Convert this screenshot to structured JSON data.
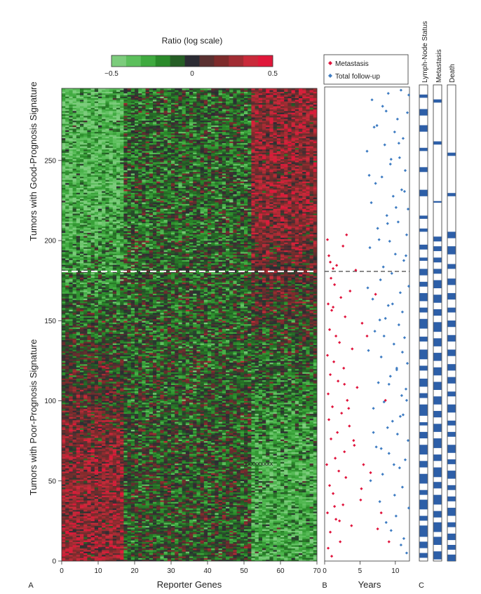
{
  "figure": {
    "panel_labels": [
      "A",
      "B",
      "C"
    ]
  },
  "colorbar": {
    "title": "Ratio (log scale)",
    "ticks": [
      "−0.5",
      "0",
      "0.5"
    ],
    "range": [
      -0.5,
      0.5
    ],
    "colors": [
      "#7ccc7c",
      "#5cbf5c",
      "#3faa3f",
      "#2a8a2a",
      "#255e25",
      "#2b2b33",
      "#5a3030",
      "#7d2b2b",
      "#a12c33",
      "#c92a3a",
      "#e0173a"
    ]
  },
  "panels": {
    "A": {
      "xlabel": "Reporter Genes",
      "x_ticks": [
        "0",
        "10",
        "20",
        "30",
        "40",
        "50",
        "60",
        "70"
      ],
      "y_ticks": [
        "0",
        "50",
        "100",
        "150",
        "200",
        "250"
      ],
      "ylabel_top": "Tumors with Good-Prognosis Signature",
      "ylabel_bottom": "Tumors with Poor-Prognosis Signature"
    },
    "B": {
      "xlabel": "Years",
      "x_ticks": [
        "0",
        "5",
        "10"
      ],
      "legend": [
        "Metastasis",
        "Total follow-up"
      ]
    },
    "C": {
      "column_labels": [
        "Lymph-Node Status",
        "Metastasis",
        "Death"
      ]
    }
  },
  "chart_data": [
    {
      "type": "heatmap",
      "x_range": [
        0,
        70
      ],
      "y_range": [
        0,
        295
      ],
      "xlabel": "Reporter Genes",
      "ylabel": "Tumors with Good-Prognosis Signature / Tumors with Poor-Prognosis Signature",
      "n_genes": 70,
      "n_tumors": 295,
      "value_range": [
        -0.5,
        0.5
      ],
      "threshold_line_y": 180,
      "mean_ratio_by_gene_block": {
        "genes": [
          "0-17",
          "17-52",
          "52-70"
        ],
        "tumors_0_180": [
          0.25,
          -0.05,
          -0.3
        ],
        "tumors_180_295": [
          -0.35,
          -0.1,
          0.25
        ]
      },
      "note_marker": "xxxxxxxxx",
      "note_marker_position": {
        "x": 49.5,
        "y": 61
      }
    },
    {
      "type": "scatter",
      "xlabel": "Years",
      "x_range": [
        0,
        12
      ],
      "y_range": [
        0,
        295
      ],
      "threshold_line_y": 180,
      "series": [
        {
          "name": "Metastasis",
          "color": "#e0143c",
          "x": [
            1.0,
            0.5,
            2.2,
            0.8,
            3.8,
            1.6,
            0.4,
            2.6,
            5.1,
            1.2,
            0.7,
            3.0,
            2.0,
            0.3,
            1.5,
            2.8,
            4.2,
            0.9,
            1.8,
            3.5,
            0.6,
            2.4,
            1.1,
            3.2,
            0.5,
            4.6,
            1.9,
            0.8,
            2.7,
            1.3,
            0.4,
            3.9,
            2.1,
            1.6,
            0.7,
            5.3,
            2.9,
            1.0,
            0.5,
            2.3,
            3.6,
            1.4,
            0.9,
            4.4,
            1.7,
            0.6,
            2.6,
            0.4,
            3.1,
            1.2,
            6.0,
            7.2,
            8.6,
            5.5,
            4.1,
            2.1,
            1.4,
            6.5,
            5.2,
            8.0,
            7.5,
            9.1,
            3.4,
            2.8,
            0.8,
            1.2
          ],
          "y": [
            3,
            8,
            12,
            18,
            22,
            26,
            30,
            35,
            38,
            42,
            47,
            52,
            56,
            60,
            64,
            68,
            72,
            76,
            80,
            84,
            88,
            92,
            96,
            100,
            104,
            108,
            112,
            116,
            120,
            124,
            128,
            132,
            136,
            140,
            144,
            148,
            152,
            156,
            160,
            164,
            168,
            172,
            176,
            181,
            184,
            190,
            196,
            200,
            203,
            158,
            140,
            166,
            100,
            60,
            75,
            25,
            34,
            55,
            45,
            30,
            20,
            12,
            95,
            110,
            186,
            182
          ]
        },
        {
          "name": "Total follow-up",
          "color": "#3e7cc2",
          "x": [
            11.6,
            10.8,
            11.2,
            9.4,
            8.7,
            10.1,
            11.9,
            7.8,
            9.9,
            11.0,
            6.5,
            8.2,
            10.6,
            11.4,
            9.1,
            7.3,
            11.8,
            10.3,
            8.9,
            9.6,
            11.1,
            6.9,
            8.4,
            10.9,
            11.5,
            7.6,
            9.3,
            10.2,
            11.7,
            8.0,
            6.2,
            9.8,
            11.3,
            7.1,
            10.5,
            8.6,
            11.0,
            9.0,
            6.8,
            10.7,
            11.9,
            7.9,
            9.5,
            8.3,
            11.2,
            10.0,
            6.4,
            9.2,
            11.6,
            7.5,
            10.4,
            8.8,
            11.8,
            6.6,
            9.7,
            10.9,
            7.2,
            8.1,
            11.4,
            9.3,
            10.6,
            6.0,
            8.5,
            11.1,
            9.9,
            7.4,
            10.3,
            11.7,
            8.2,
            6.7,
            9.0,
            10.8,
            11.5,
            7.7,
            8.9,
            10.1,
            11.3,
            6.3,
            9.4,
            10.5,
            7.0,
            8.7,
            11.9,
            9.6,
            6.1,
            10.2,
            11.0,
            8.4,
            7.8,
            9.1,
            11.6,
            10.7,
            6.9,
            8.0,
            9.8
          ],
          "y": [
            5,
            10,
            14,
            19,
            24,
            28,
            33,
            37,
            41,
            46,
            50,
            54,
            58,
            63,
            67,
            71,
            75,
            79,
            83,
            87,
            91,
            95,
            99,
            103,
            107,
            111,
            115,
            119,
            123,
            127,
            131,
            135,
            139,
            143,
            147,
            151,
            155,
            159,
            163,
            167,
            171,
            175,
            179,
            183,
            187,
            191,
            195,
            199,
            203,
            207,
            211,
            215,
            219,
            223,
            227,
            231,
            235,
            239,
            243,
            247,
            251,
            255,
            259,
            263,
            267,
            271,
            275,
            279,
            283,
            287,
            291,
            293,
            190,
            200,
            210,
            220,
            230,
            240,
            250,
            260,
            270,
            280,
            290,
            160,
            170,
            120,
            130,
            140,
            150,
            110,
            100,
            90,
            80,
            70,
            60
          ]
        }
      ]
    },
    {
      "type": "heatmap",
      "columns": [
        "Lymph-Node Status",
        "Metastasis",
        "Death"
      ],
      "y_range": [
        0,
        295
      ],
      "colors": {
        "positive": "#2d5fa8",
        "negative": "#ffffff"
      },
      "positive_intervals": [
        [
          [
            2,
            5
          ],
          [
            8,
            12
          ],
          [
            15,
            22
          ],
          [
            25,
            28
          ],
          [
            32,
            38
          ],
          [
            41,
            44
          ],
          [
            48,
            54
          ],
          [
            58,
            62
          ],
          [
            66,
            72
          ],
          [
            76,
            80
          ],
          [
            84,
            86
          ],
          [
            90,
            97
          ],
          [
            101,
            104
          ],
          [
            108,
            113
          ],
          [
            118,
            121
          ],
          [
            125,
            131
          ],
          [
            136,
            139
          ],
          [
            144,
            150
          ],
          [
            154,
            157
          ],
          [
            161,
            166
          ],
          [
            170,
            173
          ],
          [
            177,
            181
          ],
          [
            186,
            188
          ],
          [
            193,
            196
          ],
          [
            204,
            206
          ],
          [
            212,
            214
          ],
          [
            226,
            230
          ],
          [
            241,
            244
          ],
          [
            254,
            256
          ],
          [
            266,
            270
          ],
          [
            276,
            280
          ],
          [
            287,
            289
          ]
        ],
        [
          [
            1,
            6
          ],
          [
            10,
            15
          ],
          [
            18,
            24
          ],
          [
            27,
            31
          ],
          [
            35,
            41
          ],
          [
            45,
            49
          ],
          [
            52,
            58
          ],
          [
            62,
            66
          ],
          [
            70,
            76
          ],
          [
            80,
            85
          ],
          [
            89,
            93
          ],
          [
            97,
            102
          ],
          [
            106,
            111
          ],
          [
            115,
            120
          ],
          [
            124,
            129
          ],
          [
            133,
            138
          ],
          [
            142,
            148
          ],
          [
            152,
            156
          ],
          [
            160,
            165
          ],
          [
            169,
            174
          ],
          [
            178,
            181
          ],
          [
            185,
            188
          ],
          [
            192,
            195
          ],
          [
            198,
            201
          ],
          [
            222,
            223
          ],
          [
            258,
            260
          ],
          [
            284,
            286
          ]
        ],
        [
          [
            0,
            4
          ],
          [
            7,
            10
          ],
          [
            13,
            17
          ],
          [
            21,
            24
          ],
          [
            28,
            33
          ],
          [
            37,
            40
          ],
          [
            44,
            47
          ],
          [
            51,
            56
          ],
          [
            60,
            63
          ],
          [
            67,
            72
          ],
          [
            77,
            80
          ],
          [
            84,
            87
          ],
          [
            92,
            97
          ],
          [
            102,
            105
          ],
          [
            110,
            114
          ],
          [
            118,
            122
          ],
          [
            127,
            131
          ],
          [
            136,
            140
          ],
          [
            145,
            149
          ],
          [
            154,
            157
          ],
          [
            162,
            166
          ],
          [
            171,
            175
          ],
          [
            181,
            184
          ],
          [
            190,
            195
          ],
          [
            200,
            204
          ],
          [
            226,
            228
          ],
          [
            251,
            253
          ]
        ]
      ]
    }
  ]
}
